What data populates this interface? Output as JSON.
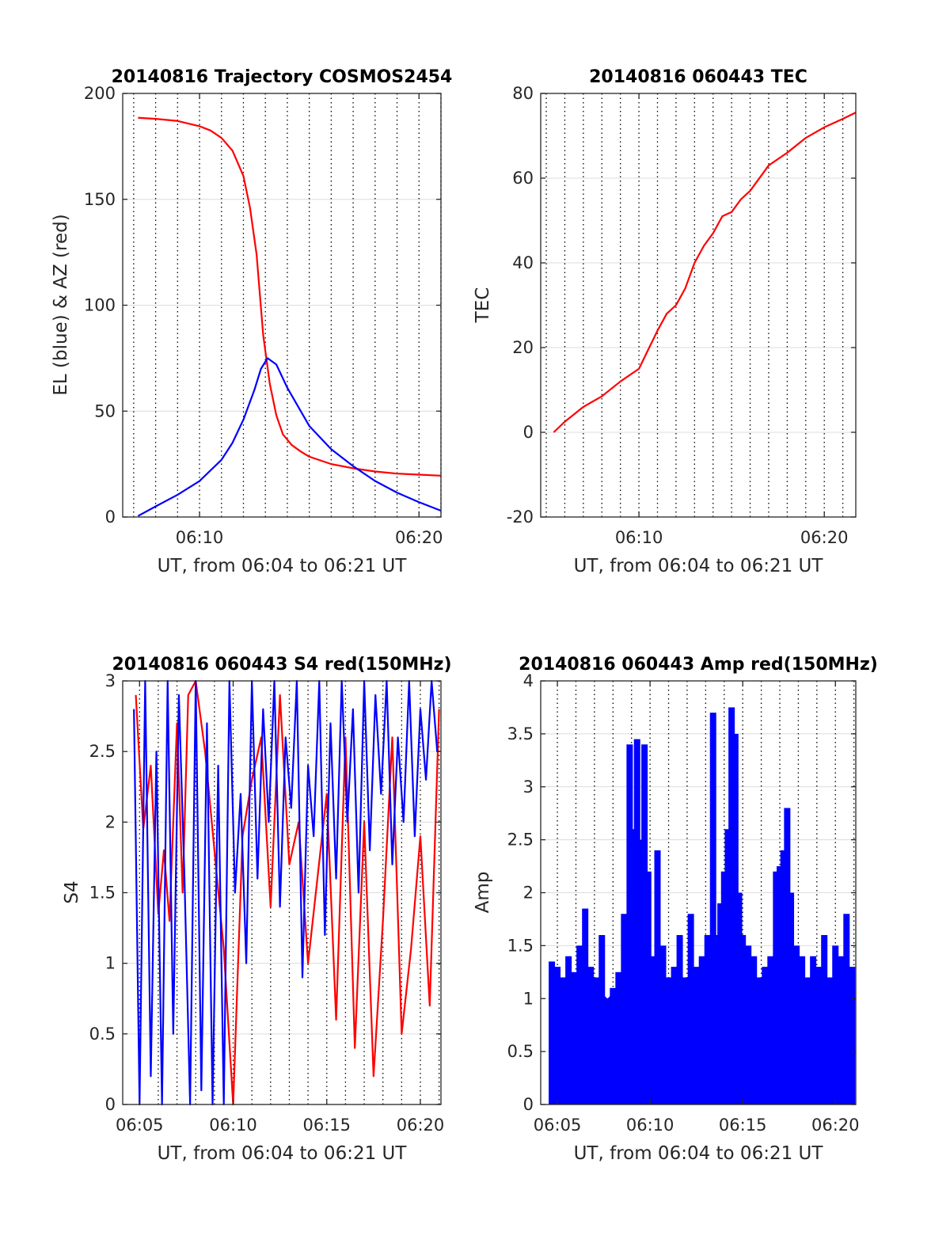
{
  "figure": {
    "background": "#ffffff",
    "colors": {
      "blue": "#0000ff",
      "red": "#ff0000",
      "grid": "#dcdcdc",
      "vline": "#000000",
      "axis": "#262626"
    }
  },
  "chart_data": [
    {
      "id": "traj",
      "type": "line",
      "title": "20140816 Trajectory COSMOS2454",
      "xlabel": "UT, from 06:04 to 06:21 UT",
      "ylabel": "EL (blue) & AZ (red)",
      "xlim": [
        6.5,
        21.0
      ],
      "ylim": [
        0,
        200
      ],
      "xticks": [
        {
          "v": 10,
          "label": "06:10"
        },
        {
          "v": 20,
          "label": "06:20"
        }
      ],
      "yticks": [
        {
          "v": 0,
          "label": "0"
        },
        {
          "v": 50,
          "label": "50"
        },
        {
          "v": 100,
          "label": "100"
        },
        {
          "v": 150,
          "label": "150"
        },
        {
          "v": 200,
          "label": "200"
        }
      ],
      "grid": true,
      "dotted_vlines_every_minutes": 1,
      "series": [
        {
          "color": "red",
          "x": [
            7.2,
            8,
            9,
            10,
            10.5,
            11,
            11.5,
            12,
            12.3,
            12.6,
            12.9,
            13.2,
            13.5,
            13.8,
            14.2,
            14.6,
            15,
            16,
            17,
            18,
            19,
            20,
            21
          ],
          "y": [
            188.5,
            188,
            187,
            184.5,
            182.5,
            179,
            173,
            161,
            146,
            124,
            86,
            63,
            48,
            39,
            34,
            31,
            28.5,
            25,
            23,
            21.5,
            20.5,
            20,
            19.5
          ]
        },
        {
          "color": "blue",
          "x": [
            7.2,
            8,
            9,
            10,
            11,
            11.5,
            12,
            12.5,
            12.8,
            13.1,
            13.5,
            14,
            15,
            16,
            17,
            18,
            19,
            20,
            21
          ],
          "y": [
            0.5,
            5,
            10.5,
            17,
            27,
            35,
            46,
            60,
            70,
            75,
            72,
            61,
            43,
            32,
            24,
            17,
            11.5,
            7,
            3
          ]
        }
      ]
    },
    {
      "id": "tec",
      "type": "line",
      "title": "20140816 060443 TEC",
      "xlabel": "UT, from 06:04 to 06:21 UT",
      "ylabel": "TEC",
      "xlim": [
        4.7,
        21.7
      ],
      "ylim": [
        -20,
        80
      ],
      "xticks": [
        {
          "v": 10,
          "label": "06:10"
        },
        {
          "v": 20,
          "label": "06:20"
        }
      ],
      "yticks": [
        {
          "v": -20,
          "label": "-20"
        },
        {
          "v": 0,
          "label": "0"
        },
        {
          "v": 20,
          "label": "20"
        },
        {
          "v": 40,
          "label": "40"
        },
        {
          "v": 60,
          "label": "60"
        },
        {
          "v": 80,
          "label": "80"
        }
      ],
      "grid": true,
      "dotted_vlines_every_minutes": 1,
      "series": [
        {
          "color": "red",
          "x": [
            5.4,
            6,
            7,
            8,
            9,
            10,
            11,
            11.5,
            12,
            12.5,
            13,
            13.5,
            14,
            14.5,
            15,
            15.5,
            16,
            17,
            18,
            19,
            20,
            21,
            21.7
          ],
          "y": [
            0,
            2.5,
            6,
            8.5,
            12,
            15,
            24,
            28,
            30,
            34,
            40,
            44,
            47,
            51,
            52,
            55,
            57,
            63,
            66,
            69.5,
            72,
            74,
            75.5
          ]
        }
      ]
    },
    {
      "id": "s4",
      "type": "line",
      "title": "20140816 060443 S4 red(150MHz)",
      "xlabel": "UT, from 06:04 to 06:21 UT",
      "ylabel": "S4",
      "xlim": [
        4.1,
        21.1
      ],
      "ylim": [
        0,
        3
      ],
      "xticks": [
        {
          "v": 5,
          "label": "06:05"
        },
        {
          "v": 10,
          "label": "06:10"
        },
        {
          "v": 15,
          "label": "06:15"
        },
        {
          "v": 20,
          "label": "06:20"
        }
      ],
      "yticks": [
        {
          "v": 0,
          "label": "0"
        },
        {
          "v": 0.5,
          "label": "0.5"
        },
        {
          "v": 1,
          "label": "1"
        },
        {
          "v": 1.5,
          "label": "1.5"
        },
        {
          "v": 2,
          "label": "2"
        },
        {
          "v": 2.5,
          "label": "2.5"
        },
        {
          "v": 3,
          "label": "3"
        }
      ],
      "grid": true,
      "dotted_vlines_every_minutes": 1,
      "series": [
        {
          "color": "red",
          "x": [
            4.8,
            5.2,
            5.6,
            6.0,
            6.3,
            6.6,
            7.0,
            7.3,
            7.6,
            8.0,
            8.5,
            9.0,
            9.5,
            10.0,
            10.5,
            11.0,
            11.5,
            12.0,
            12.5,
            13.0,
            13.5,
            14.0,
            14.5,
            15.0,
            15.5,
            16.0,
            16.5,
            17.0,
            17.5,
            18.0,
            18.5,
            19.0,
            19.5,
            20.0,
            20.5,
            21.0
          ],
          "y": [
            2.9,
            1.95,
            2.4,
            1.35,
            1.8,
            1.3,
            2.7,
            1.5,
            2.9,
            3.0,
            2.5,
            1.8,
            1.1,
            0.0,
            1.9,
            2.3,
            2.6,
            1.4,
            2.9,
            1.7,
            2.0,
            1.0,
            1.6,
            2.2,
            0.6,
            2.6,
            0.4,
            2.0,
            0.2,
            1.3,
            2.6,
            0.5,
            1.1,
            1.9,
            0.7,
            2.8
          ]
        },
        {
          "color": "blue",
          "x": [
            4.7,
            5.0,
            5.3,
            5.6,
            5.9,
            6.2,
            6.5,
            6.8,
            7.1,
            7.4,
            7.7,
            8.0,
            8.3,
            8.6,
            8.9,
            9.2,
            9.5,
            9.8,
            10.1,
            10.4,
            10.7,
            11.0,
            11.3,
            11.6,
            11.9,
            12.2,
            12.5,
            12.8,
            13.1,
            13.4,
            13.7,
            14.0,
            14.3,
            14.6,
            14.9,
            15.2,
            15.5,
            15.8,
            16.1,
            16.4,
            16.7,
            17.0,
            17.3,
            17.6,
            17.9,
            18.2,
            18.5,
            18.8,
            19.1,
            19.4,
            19.7,
            20.0,
            20.3,
            20.6,
            20.9
          ],
          "y": [
            2.8,
            0.0,
            3.0,
            0.2,
            2.5,
            0.0,
            3.0,
            0.5,
            2.9,
            1.6,
            0.0,
            3.0,
            0.1,
            2.7,
            0.0,
            2.4,
            0.0,
            3.0,
            1.5,
            2.2,
            1.0,
            3.0,
            1.6,
            2.8,
            2.0,
            3.0,
            1.4,
            2.6,
            2.1,
            3.0,
            0.9,
            2.4,
            1.9,
            3.0,
            1.2,
            2.7,
            1.6,
            3.0,
            2.0,
            2.8,
            1.5,
            3.0,
            1.8,
            2.9,
            2.2,
            3.0,
            1.7,
            2.6,
            2.0,
            3.0,
            1.9,
            2.8,
            2.3,
            3.0,
            2.5
          ]
        }
      ]
    },
    {
      "id": "amp",
      "type": "line",
      "title": "20140816 060443 Amp red(150MHz)",
      "xlabel": "UT, from 06:04 to 06:21 UT",
      "ylabel": "Amp",
      "xlim": [
        4.1,
        21.1
      ],
      "ylim": [
        0,
        4
      ],
      "xticks": [
        {
          "v": 5,
          "label": "06:05"
        },
        {
          "v": 10,
          "label": "06:10"
        },
        {
          "v": 15,
          "label": "06:15"
        },
        {
          "v": 20,
          "label": "06:20"
        }
      ],
      "yticks": [
        {
          "v": 0,
          "label": "0"
        },
        {
          "v": 0.5,
          "label": "0.5"
        },
        {
          "v": 1,
          "label": "1"
        },
        {
          "v": 1.5,
          "label": "1.5"
        },
        {
          "v": 2,
          "label": "2"
        },
        {
          "v": 2.5,
          "label": "2.5"
        },
        {
          "v": 3,
          "label": "3"
        },
        {
          "v": 3.5,
          "label": "3.5"
        },
        {
          "v": 4,
          "label": "4"
        }
      ],
      "grid": true,
      "dotted_vlines_every_minutes": 1,
      "series": [
        {
          "color": "blue",
          "style": "spikes",
          "x": [
            4.7,
            5.0,
            5.3,
            5.6,
            5.9,
            6.2,
            6.5,
            6.8,
            7.1,
            7.4,
            7.7,
            8.0,
            8.3,
            8.6,
            8.9,
            9.1,
            9.3,
            9.5,
            9.7,
            9.9,
            10.1,
            10.4,
            10.7,
            11.0,
            11.3,
            11.6,
            11.9,
            12.2,
            12.5,
            12.8,
            13.1,
            13.4,
            13.6,
            13.8,
            14.0,
            14.2,
            14.4,
            14.6,
            14.8,
            15.0,
            15.3,
            15.6,
            15.9,
            16.2,
            16.5,
            16.8,
            17.0,
            17.2,
            17.4,
            17.6,
            17.9,
            18.2,
            18.5,
            18.8,
            19.1,
            19.4,
            19.7,
            20.0,
            20.3,
            20.6,
            20.9
          ],
          "y": [
            1.35,
            1.3,
            1.2,
            1.4,
            1.25,
            1.5,
            1.85,
            1.3,
            1.2,
            1.6,
            1.0,
            1.1,
            1.25,
            1.8,
            3.4,
            2.6,
            3.45,
            2.5,
            3.4,
            2.2,
            1.4,
            2.4,
            1.5,
            1.2,
            1.3,
            1.6,
            1.2,
            1.8,
            1.3,
            1.4,
            1.6,
            3.7,
            1.6,
            1.9,
            2.2,
            2.6,
            3.75,
            3.5,
            2.0,
            1.6,
            1.5,
            1.4,
            1.2,
            1.3,
            1.4,
            2.2,
            2.25,
            2.4,
            2.8,
            2.0,
            1.5,
            1.4,
            1.2,
            1.4,
            1.3,
            1.6,
            1.2,
            1.5,
            1.4,
            1.8,
            1.3
          ]
        }
      ]
    }
  ]
}
